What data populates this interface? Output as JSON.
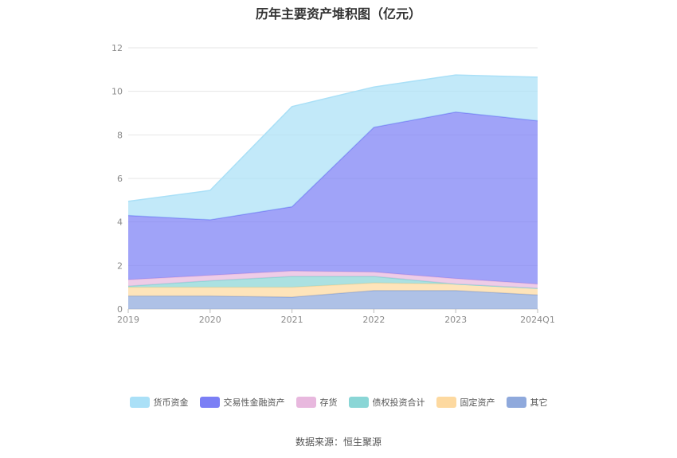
{
  "chart_data": {
    "type": "area",
    "stacked": true,
    "title": "历年主要资产堆积图（亿元）",
    "xlabel": "",
    "ylabel": "",
    "categories": [
      "2019",
      "2020",
      "2021",
      "2022",
      "2023",
      "2024Q1"
    ],
    "ylim": [
      0,
      12
    ],
    "yticks": [
      0,
      2,
      4,
      6,
      8,
      10,
      12
    ],
    "grid": true,
    "legend_position": "bottom",
    "series": [
      {
        "name": "其它",
        "color": "#8fa9dc",
        "values": [
          0.6,
          0.6,
          0.55,
          0.85,
          0.85,
          0.65
        ]
      },
      {
        "name": "固定资产",
        "color": "#fdd9a0",
        "values": [
          0.4,
          0.4,
          0.45,
          0.35,
          0.3,
          0.3
        ]
      },
      {
        "name": "债权投资合计",
        "color": "#8ad6d6",
        "values": [
          0.05,
          0.3,
          0.5,
          0.3,
          0.0,
          0.0
        ]
      },
      {
        "name": "存货",
        "color": "#e8b8de",
        "values": [
          0.3,
          0.25,
          0.25,
          0.2,
          0.25,
          0.2
        ]
      },
      {
        "name": "交易性金融资产",
        "color": "#7b7ff5",
        "values": [
          2.95,
          2.55,
          2.95,
          6.65,
          7.65,
          7.5
        ]
      },
      {
        "name": "货币资金",
        "color": "#aae0f7",
        "values": [
          0.65,
          1.35,
          4.6,
          1.85,
          1.7,
          2.0
        ]
      }
    ],
    "legend_order": [
      "货币资金",
      "交易性金融资产",
      "存货",
      "债权投资合计",
      "固定资产",
      "其它"
    ]
  },
  "source_text": "数据来源：恒生聚源"
}
